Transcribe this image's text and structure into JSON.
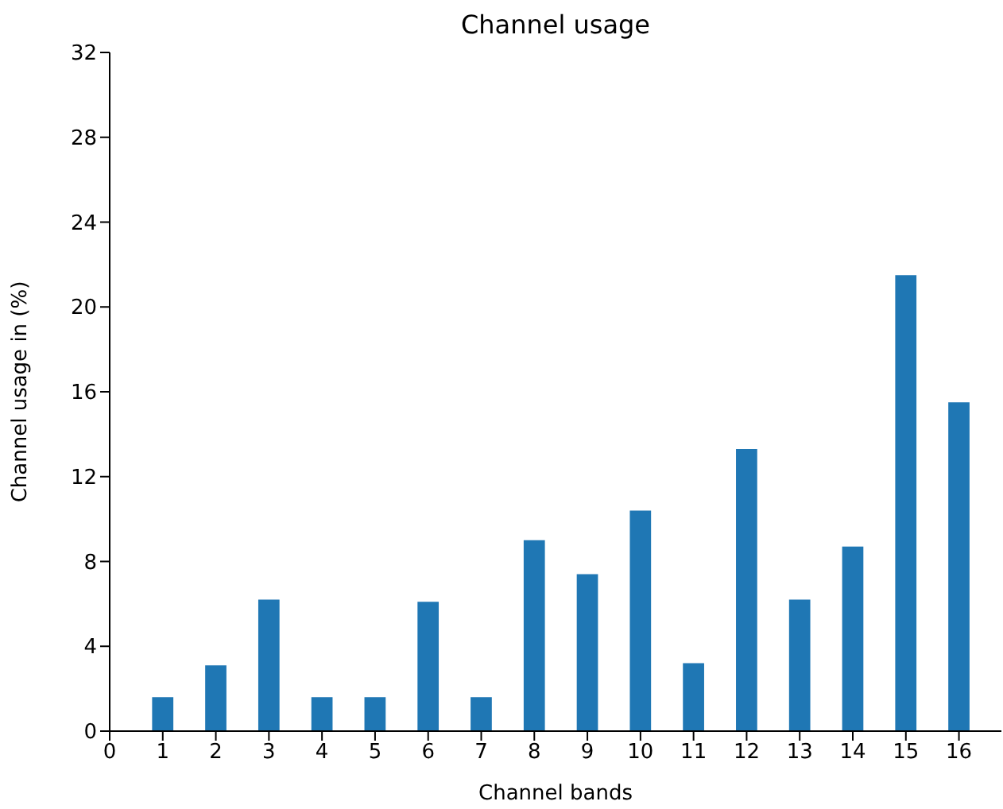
{
  "chart_data": {
    "type": "bar",
    "title": "Channel usage",
    "xlabel": "Channel bands",
    "ylabel": "Channel usage in (%)",
    "x": [
      1,
      2,
      3,
      4,
      5,
      6,
      7,
      8,
      9,
      10,
      11,
      12,
      13,
      14,
      15,
      16
    ],
    "values": [
      1.6,
      3.1,
      6.2,
      1.6,
      1.6,
      6.1,
      1.6,
      9.0,
      7.4,
      10.4,
      3.2,
      13.3,
      6.2,
      8.7,
      21.5,
      15.5
    ],
    "color": "#1f77b4",
    "xlim": [
      0,
      16.8
    ],
    "ylim": [
      0,
      32
    ],
    "xticks": [
      0,
      1,
      2,
      3,
      4,
      5,
      6,
      7,
      8,
      9,
      10,
      11,
      12,
      13,
      14,
      15,
      16
    ],
    "yticks": [
      0,
      4,
      8,
      12,
      16,
      20,
      24,
      28,
      32
    ]
  }
}
